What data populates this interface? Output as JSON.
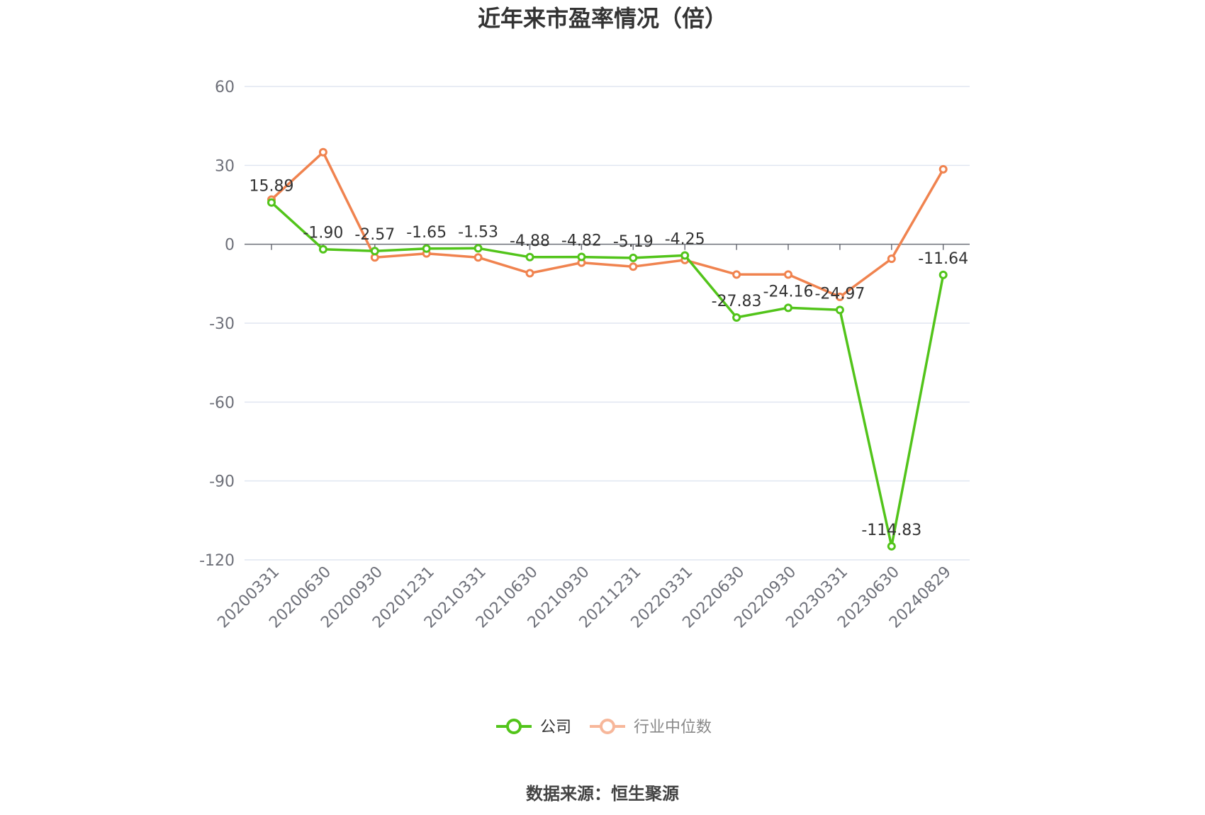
{
  "chart_data": {
    "type": "line",
    "title": "近年来市盈率情况（倍）",
    "categories": [
      "20200331",
      "20200630",
      "20200930",
      "20201231",
      "20210331",
      "20210630",
      "20210930",
      "20211231",
      "20220331",
      "20220630",
      "20220930",
      "20230331",
      "20230630",
      "20240829"
    ],
    "series": [
      {
        "name": "公司",
        "color": "#52c41a",
        "values": [
          15.89,
          -1.9,
          -2.57,
          -1.65,
          -1.53,
          -4.88,
          -4.82,
          -5.19,
          -4.25,
          -27.83,
          -24.16,
          -24.97,
          -114.83,
          -11.64
        ],
        "labels": [
          "15.89",
          "-1.90",
          "-2.57",
          "-1.65",
          "-1.53",
          "-4.88",
          "-4.82",
          "-5.19",
          "-4.25",
          "-27.83",
          "-24.16",
          "-24.97",
          "-114.83",
          "-11.64"
        ]
      },
      {
        "name": "行业中位数",
        "color": "#f0834f",
        "values": [
          17.0,
          35.0,
          -5.0,
          -3.5,
          -5.0,
          -11.0,
          -7.0,
          -8.5,
          -6.0,
          -11.5,
          -11.5,
          -20.0,
          -5.5,
          28.5
        ]
      }
    ],
    "yticks": [
      60,
      30,
      0,
      -30,
      -60,
      -90,
      -120
    ],
    "ylim": [
      -120,
      60
    ],
    "grid": true,
    "legend": "bottom-center",
    "source": "数据来源：恒生聚源"
  }
}
